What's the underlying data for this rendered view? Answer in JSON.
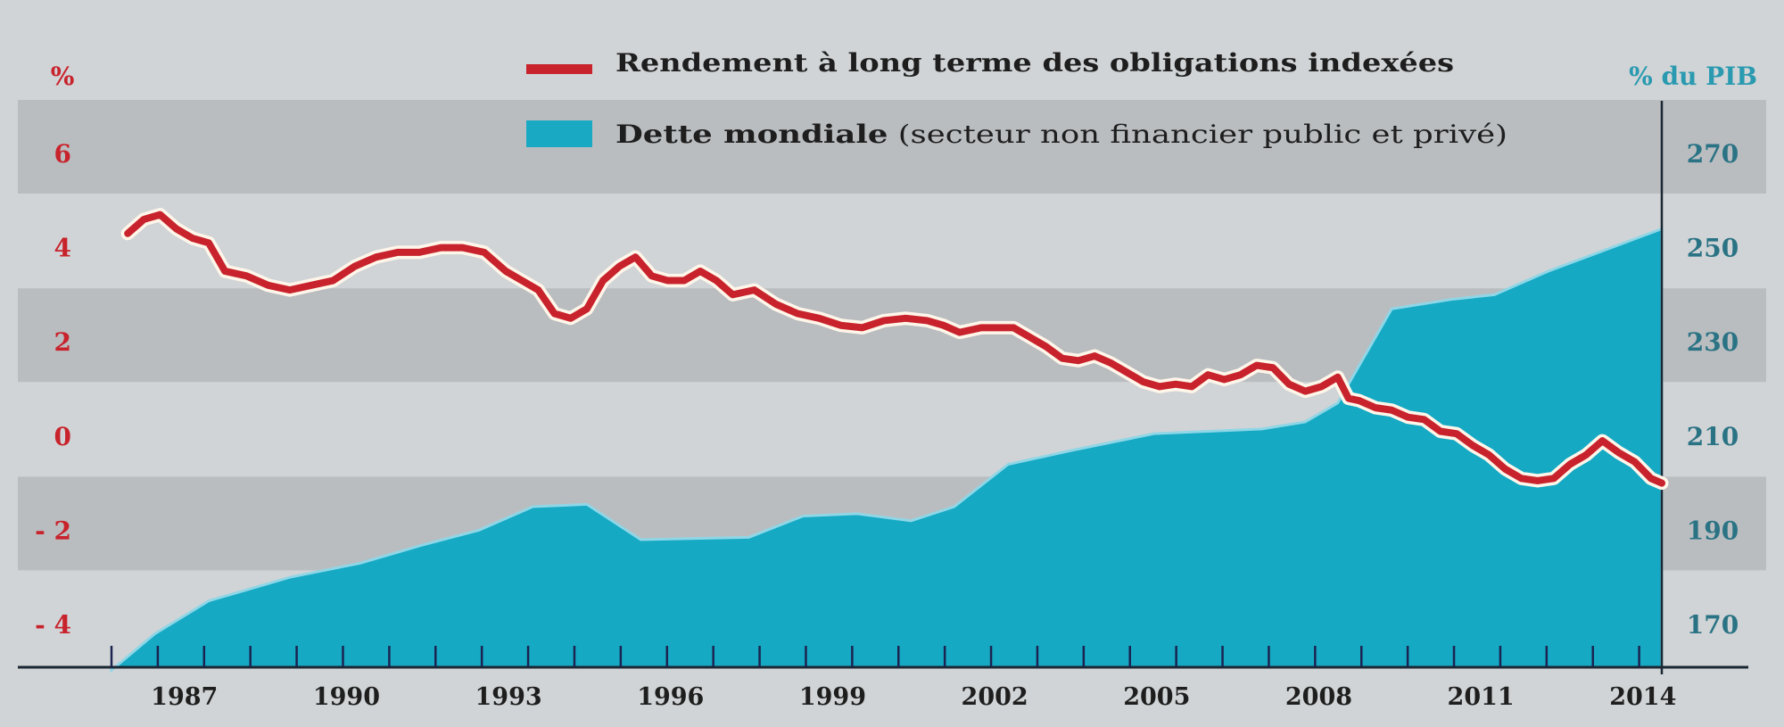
{
  "chart_data": {
    "type": "line+area",
    "legend": {
      "placement": "top-center",
      "entries": [
        {
          "series": "yield",
          "bold": "Rendement à long terme des obligations indexées",
          "normal": ""
        },
        {
          "series": "debt",
          "bold": "Dette mondiale",
          "normal": " (secteur non financier public et privé)"
        }
      ]
    },
    "left_axis": {
      "unit_label": "%",
      "ticks": [
        6,
        4,
        2,
        0,
        -2,
        -4
      ],
      "tick_labels": [
        "6",
        "4",
        "2",
        "0",
        "- 2",
        "- 4"
      ],
      "range": [
        -4.9,
        7
      ],
      "color": "#c8232c"
    },
    "right_axis": {
      "unit_label": "% du PIB",
      "ticks": [
        270,
        250,
        230,
        210,
        190,
        170
      ],
      "tick_labels": [
        "270",
        "250",
        "230",
        "210",
        "190",
        "170"
      ],
      "range": [
        161,
        285
      ],
      "color": "#2a9ab0",
      "tick_color": "#2a7384"
    },
    "x_axis": {
      "range": [
        1985.7,
        2014.4
      ],
      "tick_labels": [
        "1987",
        "1990",
        "1993",
        "1996",
        "1999",
        "2002",
        "2005",
        "2008",
        "2011",
        "2014"
      ],
      "tick_years": [
        1987,
        1990,
        1993,
        1996,
        1999,
        2002,
        2005,
        2008,
        2011,
        2014
      ],
      "minor_tick_step": 0.857
    },
    "series": [
      {
        "name": "Dette mondiale",
        "type": "area",
        "axis": "right",
        "color": "#15a9c4",
        "x": [
          1985.7,
          1986.5,
          1987.5,
          1989,
          1990.3,
          1991.5,
          1992.5,
          1993.5,
          1994.5,
          1995.5,
          1997.5,
          1998.5,
          1999.5,
          2000.5,
          2001.3,
          2002.3,
          2003.5,
          2005,
          2006,
          2007,
          2007.8,
          2008.4,
          2009.4,
          2010.5,
          2011.3,
          2012.3,
          2014.4
        ],
        "values": [
          160.3,
          168,
          175,
          180,
          183,
          187,
          190,
          195,
          195.5,
          188,
          188.5,
          193,
          193.5,
          192,
          195,
          204,
          207,
          210.5,
          211,
          211.5,
          213,
          217,
          237,
          239,
          240,
          245,
          254
        ]
      },
      {
        "name": "Rendement à long terme des obligations indexées",
        "type": "line",
        "axis": "left",
        "color": "#c8232c",
        "x": [
          1986.0,
          1986.3,
          1986.6,
          1986.9,
          1987.2,
          1987.5,
          1987.8,
          1988.2,
          1988.6,
          1989.0,
          1989.4,
          1989.8,
          1990.2,
          1990.6,
          1991.0,
          1991.4,
          1991.8,
          1992.2,
          1992.6,
          1993.0,
          1993.3,
          1993.6,
          1993.9,
          1994.2,
          1994.5,
          1994.8,
          1995.1,
          1995.4,
          1995.7,
          1996.0,
          1996.3,
          1996.6,
          1996.9,
          1997.2,
          1997.6,
          1998.0,
          1998.4,
          1998.8,
          1999.2,
          1999.6,
          2000.0,
          2000.4,
          2000.8,
          2001.1,
          2001.4,
          2001.8,
          2002.1,
          2002.4,
          2002.7,
          2003.0,
          2003.3,
          2003.6,
          2003.9,
          2004.2,
          2004.5,
          2004.8,
          2005.1,
          2005.4,
          2005.7,
          2006.0,
          2006.3,
          2006.6,
          2006.9,
          2007.2,
          2007.5,
          2007.8,
          2008.1,
          2008.4,
          2008.6,
          2008.8,
          2009.1,
          2009.4,
          2009.7,
          2010.0,
          2010.3,
          2010.6,
          2010.9,
          2011.2,
          2011.5,
          2011.8,
          2012.1,
          2012.4,
          2012.7,
          2013.0,
          2013.3,
          2013.6,
          2013.9,
          2014.2,
          2014.4
        ],
        "values": [
          4.3,
          4.6,
          4.7,
          4.4,
          4.2,
          4.1,
          3.5,
          3.4,
          3.2,
          3.1,
          3.2,
          3.3,
          3.6,
          3.8,
          3.9,
          3.9,
          4.0,
          4.0,
          3.9,
          3.5,
          3.3,
          3.1,
          2.6,
          2.5,
          2.7,
          3.3,
          3.6,
          3.8,
          3.4,
          3.3,
          3.3,
          3.5,
          3.3,
          3.0,
          3.1,
          2.8,
          2.6,
          2.5,
          2.35,
          2.3,
          2.45,
          2.5,
          2.45,
          2.35,
          2.2,
          2.3,
          2.3,
          2.3,
          2.1,
          1.9,
          1.65,
          1.6,
          1.7,
          1.55,
          1.35,
          1.15,
          1.05,
          1.1,
          1.05,
          1.3,
          1.2,
          1.3,
          1.5,
          1.45,
          1.1,
          0.95,
          1.05,
          1.25,
          0.8,
          0.75,
          0.6,
          0.55,
          0.4,
          0.35,
          0.1,
          0.05,
          -0.2,
          -0.4,
          -0.7,
          -0.9,
          -0.95,
          -0.9,
          -0.6,
          -0.4,
          -0.1,
          -0.35,
          -0.55,
          -0.9,
          -1.0
        ]
      }
    ]
  }
}
